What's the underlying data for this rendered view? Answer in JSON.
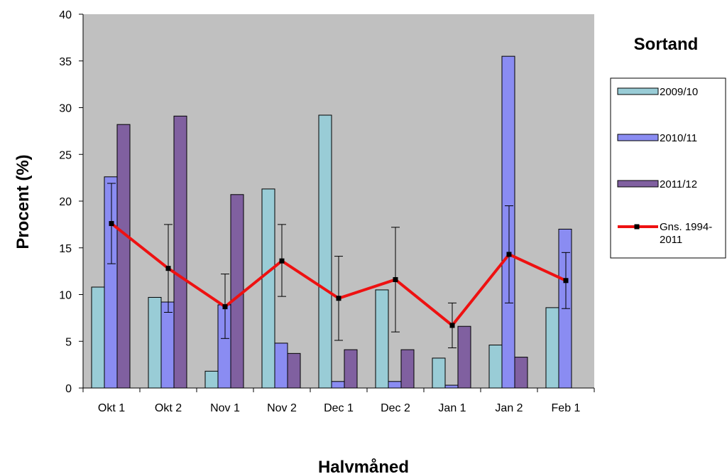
{
  "chart_data": {
    "type": "bar",
    "title": "Sortand",
    "xlabel": "Halvmåned",
    "ylabel": "Procent (%)",
    "ylim": [
      0,
      40
    ],
    "yticks": [
      0,
      5,
      10,
      15,
      20,
      25,
      30,
      35,
      40
    ],
    "categories": [
      "Okt 1",
      "Okt 2",
      "Nov 1",
      "Nov 2",
      "Dec 1",
      "Dec 2",
      "Jan 1",
      "Jan 2",
      "Feb 1"
    ],
    "grid": false,
    "legend_position": "right",
    "series": [
      {
        "name": "2009/10",
        "kind": "bar",
        "color": "#99ccd6",
        "values": [
          10.8,
          9.7,
          1.8,
          21.3,
          29.2,
          10.5,
          3.2,
          4.6,
          8.6
        ]
      },
      {
        "name": "2010/11",
        "kind": "bar",
        "color": "#8a8cf2",
        "values": [
          22.6,
          9.2,
          8.9,
          4.8,
          0.7,
          0.7,
          0.3,
          35.5,
          17.0
        ]
      },
      {
        "name": "2011/12",
        "kind": "bar",
        "color": "#8060a0",
        "values": [
          28.2,
          29.1,
          20.7,
          3.7,
          4.1,
          4.1,
          6.6,
          3.3,
          null
        ]
      },
      {
        "name": "Gns. 1994-2011",
        "kind": "line",
        "color": "#ee1111",
        "values": [
          17.6,
          12.8,
          8.7,
          13.6,
          9.6,
          11.6,
          6.7,
          14.3,
          11.5
        ],
        "error_low": [
          13.3,
          8.1,
          5.3,
          9.8,
          5.1,
          6.0,
          4.3,
          9.1,
          8.5
        ],
        "error_high": [
          21.9,
          17.5,
          12.2,
          17.5,
          14.1,
          17.2,
          9.1,
          19.5,
          14.5
        ]
      }
    ],
    "legend": [
      "2009/10",
      "2010/11",
      "2011/12",
      "Gns. 1994-2011"
    ]
  }
}
